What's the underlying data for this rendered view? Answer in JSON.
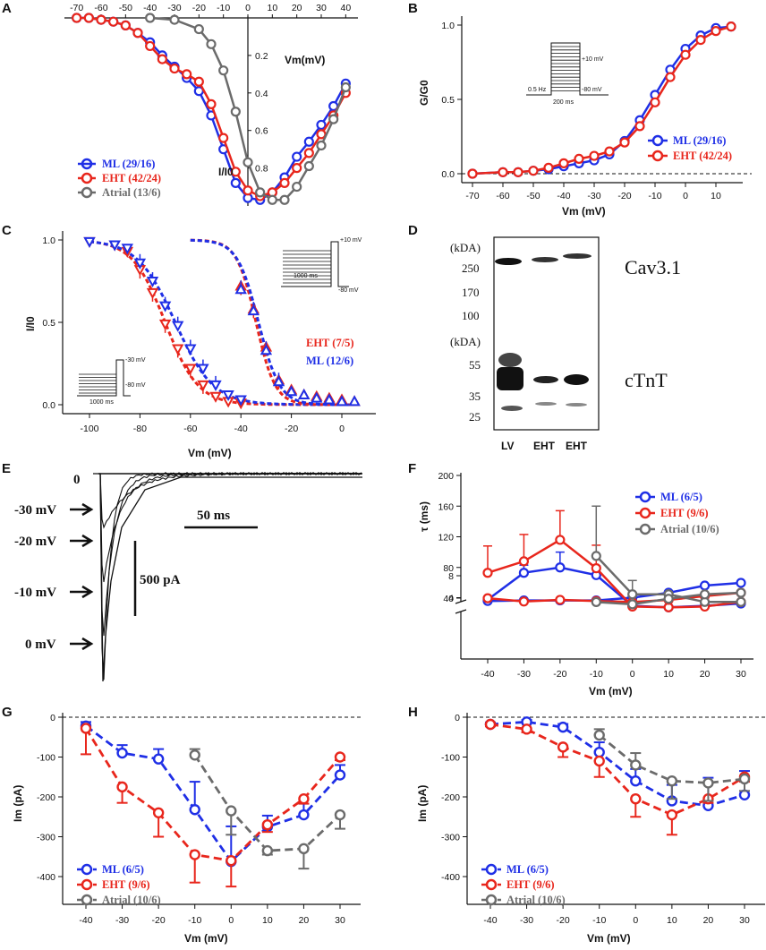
{
  "colors": {
    "ml": "#1f2fe6",
    "eht": "#e8261c",
    "atrial": "#6b6b6b"
  },
  "chart_data": [
    {
      "panel": "A",
      "type": "line",
      "xlabel": "Vm(mV)",
      "ylabel": "I/I0",
      "xlim": [
        -75,
        45
      ],
      "ylim": [
        0,
        1.05
      ],
      "xticks": [
        "-70",
        "-60",
        "-50",
        "-40",
        "-30",
        "-20",
        "-10",
        "0",
        "10",
        "20",
        "30",
        "40"
      ],
      "yticks": [
        "0.2",
        "0.4",
        "0.6",
        "0.8"
      ],
      "series": [
        {
          "name": "ML (29/16)",
          "color": "ml",
          "x": [
            -70,
            -65,
            -60,
            -55,
            -50,
            -45,
            -40,
            -35,
            -30,
            -25,
            -20,
            -15,
            -10,
            -5,
            0,
            5,
            10,
            15,
            20,
            25,
            30,
            35,
            40
          ],
          "y": [
            0,
            0,
            0.01,
            0.02,
            0.04,
            0.08,
            0.13,
            0.2,
            0.26,
            0.32,
            0.39,
            0.52,
            0.7,
            0.88,
            0.96,
            0.97,
            0.93,
            0.85,
            0.74,
            0.66,
            0.57,
            0.47,
            0.35
          ]
        },
        {
          "name": "EHT (42/24)",
          "color": "eht",
          "x": [
            -70,
            -65,
            -60,
            -55,
            -50,
            -45,
            -40,
            -35,
            -30,
            -25,
            -20,
            -15,
            -10,
            -5,
            0,
            5,
            10,
            15,
            20,
            25,
            30,
            35,
            40
          ],
          "y": [
            0,
            0,
            0.01,
            0.02,
            0.04,
            0.08,
            0.15,
            0.22,
            0.27,
            0.3,
            0.34,
            0.46,
            0.64,
            0.82,
            0.92,
            0.95,
            0.93,
            0.88,
            0.8,
            0.72,
            0.62,
            0.52,
            0.4
          ]
        },
        {
          "name": "Atrial (13/6)",
          "color": "atrial",
          "x": [
            -40,
            -30,
            -20,
            -15,
            -10,
            -5,
            0,
            5,
            10,
            15,
            20,
            25,
            30,
            35,
            40
          ],
          "y": [
            0,
            0.01,
            0.06,
            0.14,
            0.28,
            0.5,
            0.77,
            0.93,
            0.97,
            0.97,
            0.9,
            0.79,
            0.68,
            0.54,
            0.37
          ]
        }
      ]
    },
    {
      "panel": "B",
      "type": "line",
      "xlabel": "Vm (mV)",
      "ylabel": "G/G0",
      "xlim": [
        -75,
        15
      ],
      "ylim": [
        0,
        1.05
      ],
      "xticks": [
        "-70",
        "-60",
        "-50",
        "-40",
        "-30",
        "-20",
        "-10",
        "0",
        "10"
      ],
      "yticks": [
        "0.0",
        "0.5",
        "1.0"
      ],
      "protocol_labels": [
        "+10 mV",
        "0.5 Hz",
        "-80 mV",
        "200 ms"
      ],
      "series": [
        {
          "name": "ML (29/16)",
          "color": "ml",
          "x": [
            -70,
            -60,
            -55,
            -50,
            -45,
            -40,
            -35,
            -30,
            -25,
            -20,
            -15,
            -10,
            -5,
            0,
            5,
            10,
            15
          ],
          "y": [
            0,
            0.01,
            0.01,
            0.02,
            0.03,
            0.05,
            0.07,
            0.09,
            0.13,
            0.22,
            0.36,
            0.53,
            0.7,
            0.84,
            0.93,
            0.98,
            0.99
          ]
        },
        {
          "name": "EHT (42/24)",
          "color": "eht",
          "x": [
            -70,
            -60,
            -55,
            -50,
            -45,
            -40,
            -35,
            -30,
            -25,
            -20,
            -15,
            -10,
            -5,
            0,
            5,
            10,
            15
          ],
          "y": [
            0,
            0.01,
            0.01,
            0.02,
            0.04,
            0.07,
            0.1,
            0.12,
            0.15,
            0.21,
            0.32,
            0.48,
            0.65,
            0.8,
            0.9,
            0.96,
            0.99
          ]
        }
      ]
    },
    {
      "panel": "C",
      "type": "line",
      "xlabel": "Vm (mV)",
      "ylabel": "I/I0",
      "xlim": [
        -105,
        10
      ],
      "ylim": [
        0,
        1.05
      ],
      "xticks": [
        "-100",
        "-80",
        "-60",
        "-40",
        "-20",
        "0"
      ],
      "yticks": [
        "0.0",
        "0.5",
        "1.0"
      ],
      "protocol_labels": [
        "+10 mV",
        "1000 ms",
        "-80 mV",
        "-30 mV",
        "1000 ms",
        "-80 mV"
      ],
      "series": [
        {
          "name": "EHT (7/5)",
          "color": "eht",
          "kind": "inact",
          "x": [
            -100,
            -90,
            -85,
            -80,
            -75,
            -70,
            -65,
            -60,
            -55,
            -50,
            -45,
            -40
          ],
          "y": [
            0.99,
            0.97,
            0.93,
            0.82,
            0.68,
            0.49,
            0.34,
            0.22,
            0.12,
            0.05,
            0.02,
            0.01
          ]
        },
        {
          "name": "ML (12/6)",
          "color": "ml",
          "kind": "inact",
          "x": [
            -100,
            -90,
            -85,
            -80,
            -75,
            -70,
            -65,
            -60,
            -55,
            -50,
            -45,
            -40
          ],
          "y": [
            0.99,
            0.97,
            0.95,
            0.86,
            0.75,
            0.6,
            0.48,
            0.34,
            0.22,
            0.12,
            0.06,
            0.03
          ]
        },
        {
          "name": "EHT act",
          "color": "eht",
          "kind": "act",
          "x": [
            -40,
            -35,
            -30,
            -25,
            -20,
            -15,
            -10,
            -5,
            0,
            5
          ],
          "y": [
            0.72,
            0.58,
            0.35,
            0.15,
            0.09,
            0.06,
            0.05,
            0.04,
            0.03,
            0.02
          ]
        },
        {
          "name": "ML act",
          "color": "ml",
          "kind": "act",
          "x": [
            -40,
            -35,
            -30,
            -25,
            -20,
            -15,
            -10,
            -5,
            0,
            5
          ],
          "y": [
            0.7,
            0.57,
            0.33,
            0.14,
            0.08,
            0.06,
            0.04,
            0.03,
            0.02,
            0.02
          ]
        }
      ]
    },
    {
      "panel": "F",
      "type": "line",
      "xlabel": "Vm (mV)",
      "ylabel": "τ (ms)",
      "xticks": [
        "-40",
        "-30",
        "-20",
        "-10",
        "0",
        "10",
        "20",
        "30"
      ],
      "yticks_upper": [
        "40",
        "80",
        "120",
        "160",
        "200"
      ],
      "yticks_lower": [
        "4",
        "8"
      ],
      "series": [
        {
          "name": "ML (6/5)",
          "color": "ml",
          "x": [
            -40,
            -30,
            -20,
            -10,
            0,
            10,
            20,
            30
          ],
          "slow": [
            38,
            73,
            80,
            70,
            30,
            28,
            30,
            33
          ],
          "fast": [
            3.4,
            3.5,
            3.5,
            3.5,
            4.0,
            4.9,
            6.2,
            6.7
          ]
        },
        {
          "name": "EHT (9/6)",
          "color": "eht",
          "x": [
            -40,
            -30,
            -20,
            -10,
            0,
            10,
            20,
            30
          ],
          "slow": [
            73,
            88,
            116,
            79,
            29,
            28,
            29,
            35
          ],
          "fast": [
            3.9,
            3.3,
            3.6,
            3.4,
            3.2,
            3.6,
            4.3,
            4.9
          ]
        },
        {
          "name": "Atrial (10/6)",
          "color": "atrial",
          "x": [
            -10,
            0,
            10,
            20,
            30
          ],
          "slow": [
            95,
            45,
            45,
            35,
            35
          ],
          "fast": [
            3.2,
            2.8,
            3.8,
            4.6,
            4.9
          ]
        }
      ]
    },
    {
      "panel": "G",
      "type": "line",
      "xlabel": "Vm (mV)",
      "ylabel": "Im (pA)",
      "xticks": [
        "-40",
        "-30",
        "-20",
        "-10",
        "0",
        "10",
        "20",
        "30"
      ],
      "yticks": [
        "0",
        "-100",
        "-200",
        "-300",
        "-400"
      ],
      "ylim": [
        -450,
        0
      ],
      "series": [
        {
          "name": "ML (6/5)",
          "color": "ml",
          "x": [
            -40,
            -30,
            -20,
            -10,
            0,
            10,
            20,
            30
          ],
          "y": [
            -22,
            -90,
            -105,
            -232,
            -362,
            -275,
            -245,
            -145
          ],
          "err": [
            10,
            20,
            25,
            70,
            88,
            28,
            28,
            25
          ]
        },
        {
          "name": "EHT (9/6)",
          "color": "eht",
          "x": [
            -40,
            -30,
            -20,
            -10,
            0,
            10,
            20,
            30
          ],
          "y": [
            -28,
            -175,
            -240,
            -345,
            -360,
            -270,
            -205,
            -100
          ],
          "err": [
            65,
            40,
            60,
            70,
            65,
            18,
            12,
            8
          ]
        },
        {
          "name": "Atrial (10/6)",
          "color": "atrial",
          "x": [
            -10,
            0,
            10,
            20,
            30
          ],
          "y": [
            -95,
            -235,
            -335,
            -330,
            -245
          ],
          "err": [
            15,
            60,
            10,
            50,
            35
          ]
        }
      ]
    },
    {
      "panel": "H",
      "type": "line",
      "xlabel": "Vm (mV)",
      "ylabel": "Im (pA)",
      "xticks": [
        "-40",
        "-30",
        "-20",
        "-10",
        "0",
        "10",
        "20",
        "30"
      ],
      "yticks": [
        "0",
        "-100",
        "-200",
        "-300",
        "-400"
      ],
      "ylim": [
        -450,
        0
      ],
      "series": [
        {
          "name": "ML (6/5)",
          "color": "ml",
          "x": [
            -40,
            -30,
            -20,
            -10,
            0,
            10,
            20,
            30
          ],
          "y": [
            -18,
            -12,
            -25,
            -88,
            -160,
            -210,
            -222,
            -195
          ],
          "err": [
            5,
            5,
            8,
            25,
            30,
            40,
            70,
            60
          ]
        },
        {
          "name": "EHT (9/6)",
          "color": "eht",
          "x": [
            -40,
            -30,
            -20,
            -10,
            0,
            10,
            20,
            30
          ],
          "y": [
            -18,
            -30,
            -75,
            -110,
            -205,
            -245,
            -205,
            -150
          ],
          "err": [
            5,
            8,
            25,
            40,
            45,
            50,
            10,
            12
          ]
        },
        {
          "name": "Atrial (10/6)",
          "color": "atrial",
          "x": [
            -10,
            0,
            10,
            20,
            30
          ],
          "y": [
            -45,
            -120,
            -160,
            -165,
            -155
          ],
          "err": [
            15,
            30,
            45,
            45,
            30
          ]
        }
      ]
    }
  ],
  "panelA": {
    "label": "A",
    "xlabel": "Vm(mV)",
    "ylabel": "I/I0",
    "legend": [
      "ML (29/16)",
      "EHT (42/24)",
      "Atrial (13/6)"
    ]
  },
  "panelB": {
    "label": "B",
    "xlabel": "Vm (mV)",
    "ylabel": "G/G0",
    "legend": [
      "ML (29/16)",
      "EHT (42/24)"
    ],
    "protocol": {
      "v_top": "+10 mV",
      "freq": "0.5 Hz",
      "v_hold": "-80 mV",
      "dur": "200 ms"
    }
  },
  "panelC": {
    "label": "C",
    "xlabel": "Vm (mV)",
    "ylabel": "I/I0",
    "legend": [
      "EHT (7/5)",
      "ML (12/6)"
    ],
    "protocol_act": {
      "v_top": "+10 mV",
      "dur": "1000 ms",
      "v_hold": "-80 mV"
    },
    "protocol_inact": {
      "v_test": "-30 mV",
      "dur": "1000 ms",
      "v_hold": "-80 mV"
    }
  },
  "panelD": {
    "label": "D",
    "units_top": "(kDA)",
    "units_bottom": "(kDA)",
    "markers_top": [
      "250",
      "170",
      "100"
    ],
    "markers_bottom": [
      "55",
      "35",
      "25"
    ],
    "protein_top": "Cav3.1",
    "protein_bottom": "cTnT",
    "lanes": [
      "LV",
      "EHT",
      "EHT"
    ]
  },
  "panelE": {
    "label": "E",
    "voltages": [
      "0",
      "-30 mV",
      "-20 mV",
      "-10 mV",
      "0 mV"
    ],
    "scale_time": "50 ms",
    "scale_current": "500 pA"
  },
  "panelF": {
    "label": "F",
    "xlabel": "Vm (mV)",
    "ylabel": "τ (ms)",
    "legend": [
      "ML (6/5)",
      "EHT (9/6)",
      "Atrial (10/6)"
    ]
  },
  "panelG": {
    "label": "G",
    "xlabel": "Vm (mV)",
    "ylabel": "Im (pA)",
    "legend": [
      "ML (6/5)",
      "EHT (9/6)",
      "Atrial (10/6)"
    ]
  },
  "panelH": {
    "label": "H",
    "xlabel": "Vm (mV)",
    "ylabel": "Im (pA)",
    "legend": [
      "ML (6/5)",
      "EHT (9/6)",
      "Atrial (10/6)"
    ]
  }
}
